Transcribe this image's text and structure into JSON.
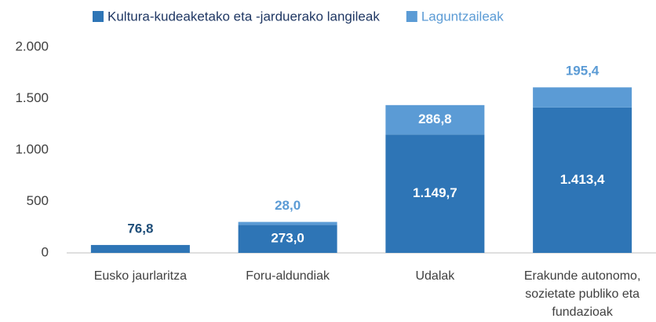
{
  "chart_data": {
    "type": "stacked_bar",
    "categories": [
      "Eusko jaurlaritza",
      "Foru-aldundiak",
      "Udalak",
      "Erakunde autonomo, sozietate publiko eta fundazioak"
    ],
    "series": [
      {
        "name": "Kultura-kudeaketako eta -jarduerako langileak",
        "color": "#2e75b6",
        "values": [
          76.8,
          273.0,
          1149.7,
          1413.4
        ],
        "value_labels": [
          "76,8",
          "273,0",
          "1.149,7",
          "1.413,4"
        ]
      },
      {
        "name": "Laguntzaileak",
        "color": "#5b9bd5",
        "values": [
          null,
          28.0,
          286.8,
          195.4
        ],
        "value_labels": [
          null,
          "28,0",
          "286,8",
          "195,4"
        ]
      }
    ],
    "ylim": [
      0,
      2000
    ],
    "yticks": [
      0,
      500,
      {
        "value": 1000,
        "label": "1.000"
      },
      {
        "value": 1500,
        "label": "1.500"
      },
      {
        "value": 2000,
        "label": "2.000"
      }
    ],
    "legend": "top"
  }
}
